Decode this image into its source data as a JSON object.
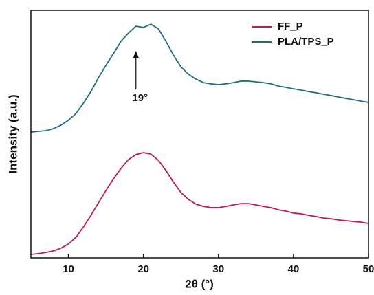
{
  "chart_data": {
    "type": "line",
    "xlabel": "2θ (°)",
    "ylabel": "Intensity (a.u.)",
    "x": [
      5,
      6,
      7,
      8,
      9,
      10,
      11,
      12,
      13,
      14,
      15,
      16,
      17,
      18,
      19,
      20,
      21,
      22,
      23,
      24,
      25,
      26,
      27,
      28,
      29,
      30,
      31,
      32,
      33,
      34,
      35,
      36,
      37,
      38,
      39,
      40,
      41,
      42,
      43,
      44,
      45,
      46,
      47,
      48,
      49,
      50
    ],
    "series": [
      {
        "name": "FF_P",
        "color": "#c0185e",
        "values": [
          1.4,
          1.7,
          2.2,
          2.8,
          3.9,
          5.6,
          8.3,
          12.5,
          17.2,
          22.2,
          27.2,
          31.9,
          36.1,
          39.7,
          41.7,
          42.5,
          41.9,
          39.4,
          35.3,
          30.6,
          26.4,
          23.6,
          21.7,
          20.8,
          20.3,
          20.3,
          20.8,
          21.4,
          21.9,
          21.9,
          21.4,
          20.8,
          20.3,
          19.4,
          18.9,
          18.1,
          17.8,
          17.2,
          16.7,
          16.1,
          15.8,
          15.3,
          15.0,
          14.7,
          14.4,
          13.9
        ]
      },
      {
        "name": "PLA/TPS_P",
        "color": "#1e6e80",
        "values": [
          50.8,
          51.1,
          51.4,
          52.2,
          53.6,
          55.6,
          58.3,
          62.5,
          67.2,
          72.8,
          77.8,
          82.5,
          87.5,
          90.8,
          93.6,
          93.1,
          94.4,
          92.5,
          87.5,
          81.9,
          77.2,
          74.2,
          72.2,
          70.8,
          70.3,
          70.0,
          70.3,
          70.8,
          71.4,
          71.4,
          71.1,
          70.8,
          70.3,
          69.4,
          68.9,
          68.3,
          67.8,
          67.2,
          66.7,
          66.1,
          65.6,
          65.0,
          64.4,
          63.9,
          63.3,
          62.8
        ]
      }
    ],
    "xlim": [
      5,
      50
    ],
    "xticks": [
      10,
      20,
      30,
      40,
      50
    ],
    "ylim": [
      0,
      100
    ],
    "legend": "upper right",
    "annotations": [
      {
        "text": "19°",
        "x": 19
      }
    ]
  }
}
